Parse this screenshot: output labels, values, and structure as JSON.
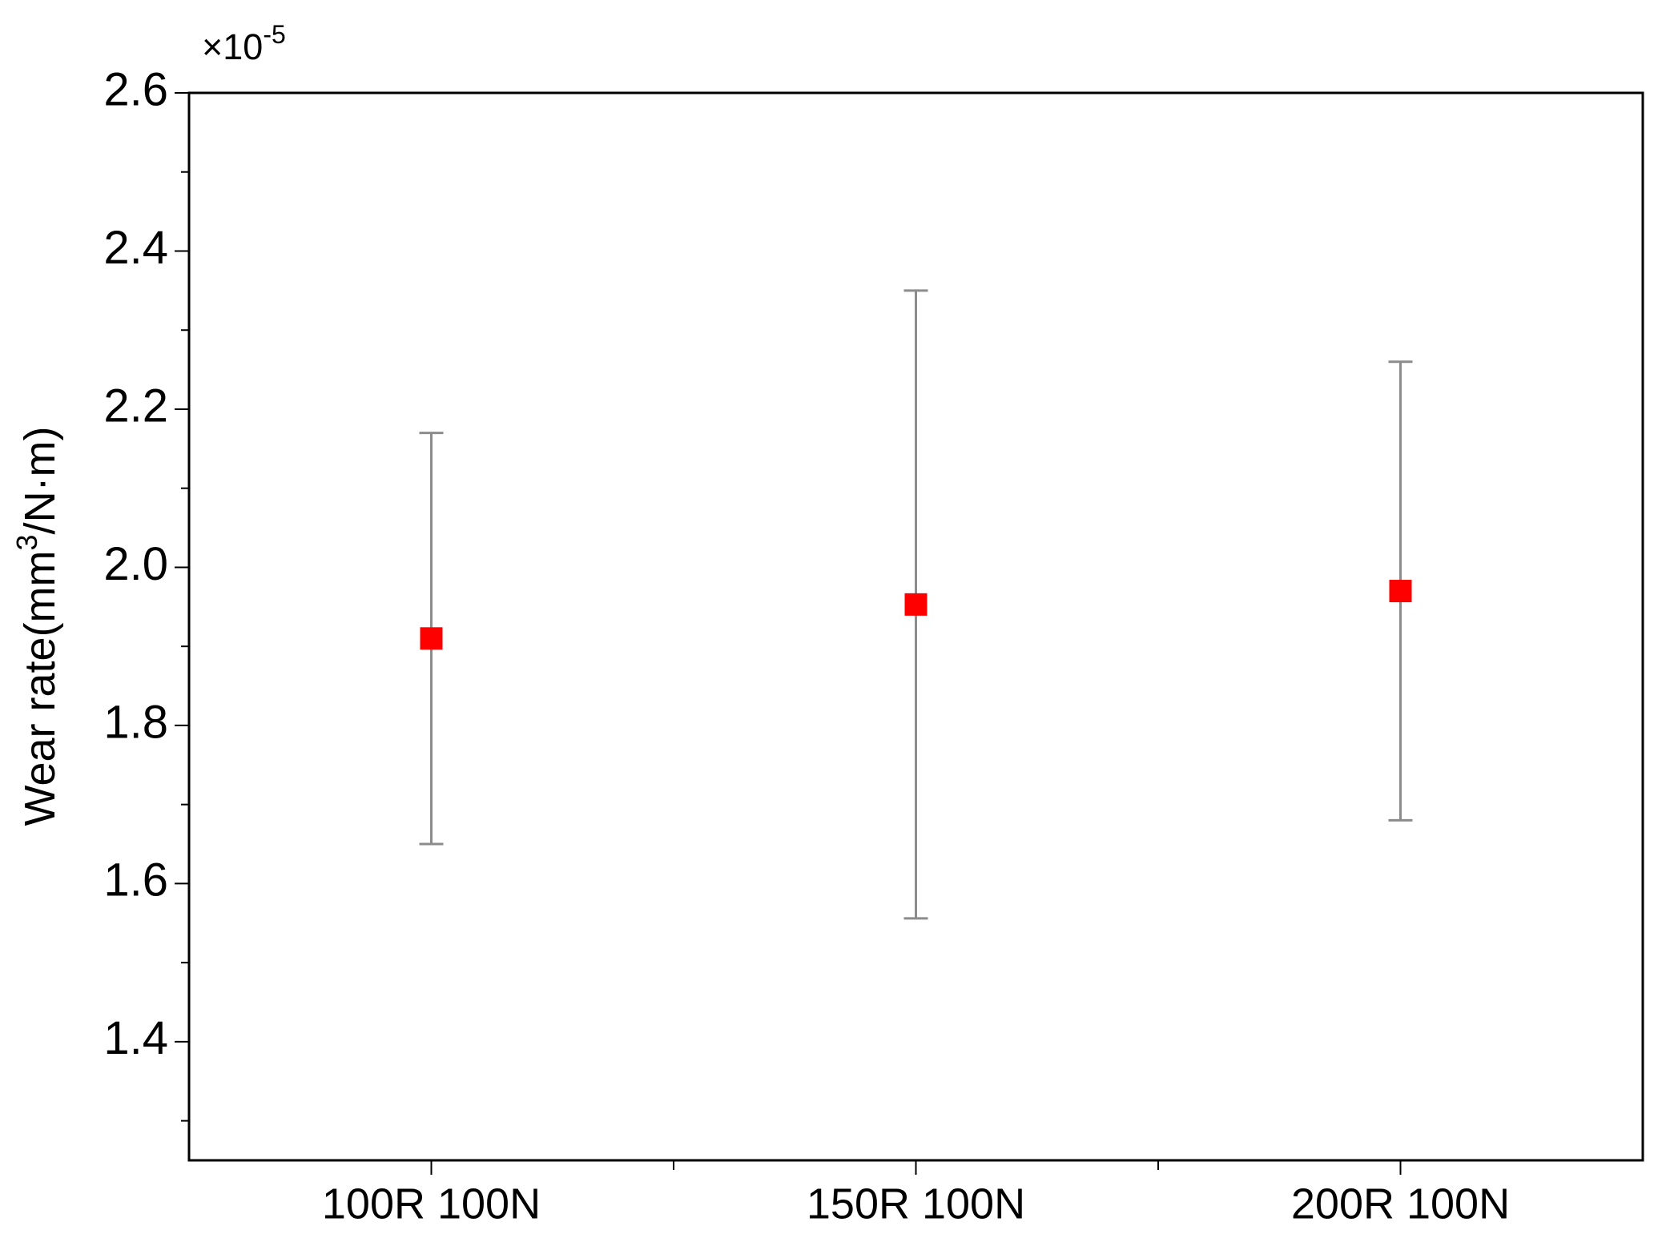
{
  "chart_data": {
    "type": "errorbar",
    "y_scale_label": {
      "base": "×10",
      "exponent": "-5"
    },
    "ylabel": {
      "before": "Wear rate(mm",
      "superscript": "3",
      "after": "/N·m)"
    },
    "categories": [
      "100R 100N",
      "150R 100N",
      "200R 100N"
    ],
    "values": [
      1.91,
      1.953,
      1.97
    ],
    "errors": [
      0.26,
      0.397,
      0.29
    ],
    "color": "#ff0000",
    "error_color": "#8c8c8c",
    "ylim": [
      1.25,
      2.6
    ],
    "yticks": [
      {
        "value": 1.4,
        "label": "1.4"
      },
      {
        "value": 1.6,
        "label": "1.6"
      },
      {
        "value": 1.8,
        "label": "1.8"
      },
      {
        "value": 2,
        "label": "2.0"
      },
      {
        "value": 2.2,
        "label": "2.2"
      },
      {
        "value": 2.4,
        "label": "2.4"
      },
      {
        "value": 2.6,
        "label": "2.6"
      }
    ],
    "yminor_ticks": [
      1.3,
      1.5,
      1.7,
      1.9,
      2.1,
      2.3,
      2.5
    ],
    "grid": false
  }
}
